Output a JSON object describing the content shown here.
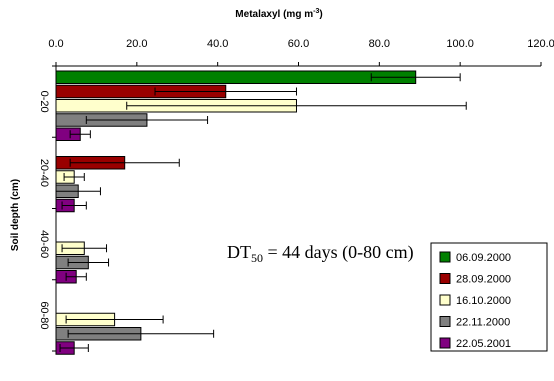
{
  "chart_data": {
    "type": "bar",
    "orientation": "horizontal",
    "title": "Metalaxyl (mg m⁻³)",
    "xlabel_main": "Metalaxyl (mg m",
    "xlabel_sup": "-3",
    "xlabel_end": ")",
    "ylabel": "Soil depth (cm)",
    "xlim": [
      0,
      120
    ],
    "x_ticks": [
      "0.0",
      "20.0",
      "40.0",
      "60.0",
      "80.0",
      "100.0",
      "120.0"
    ],
    "x_axis_position": "top",
    "grid": false,
    "legend_position": "bottom-right",
    "categories": [
      "0-20",
      "20-40",
      "40-60",
      "60-80"
    ],
    "series": [
      {
        "name": "06.09.2000",
        "color": "#008000",
        "values": [
          89,
          null,
          null,
          null
        ],
        "error": [
          11,
          null,
          null,
          null
        ]
      },
      {
        "name": "28.09.2000",
        "color": "#990000",
        "values": [
          42,
          17,
          null,
          null
        ],
        "error": [
          17.5,
          13.5,
          null,
          null
        ]
      },
      {
        "name": "16.10.2000",
        "color": "#ffffcc",
        "values": [
          59.5,
          4.5,
          7,
          14.5
        ],
        "error": [
          42,
          2.5,
          5.5,
          12
        ]
      },
      {
        "name": "22.11.2000",
        "color": "#808080",
        "values": [
          22.5,
          5.5,
          8,
          21
        ],
        "error": [
          15,
          5.5,
          5,
          18
        ]
      },
      {
        "name": "22.05.2001",
        "color": "#800080",
        "values": [
          6,
          4.5,
          5,
          4.5
        ],
        "error": [
          2.5,
          3,
          2.5,
          3.5
        ]
      }
    ],
    "annotation": {
      "main": "DT",
      "sub": "50",
      "rest": " = 44 days (0-80 cm)"
    }
  }
}
